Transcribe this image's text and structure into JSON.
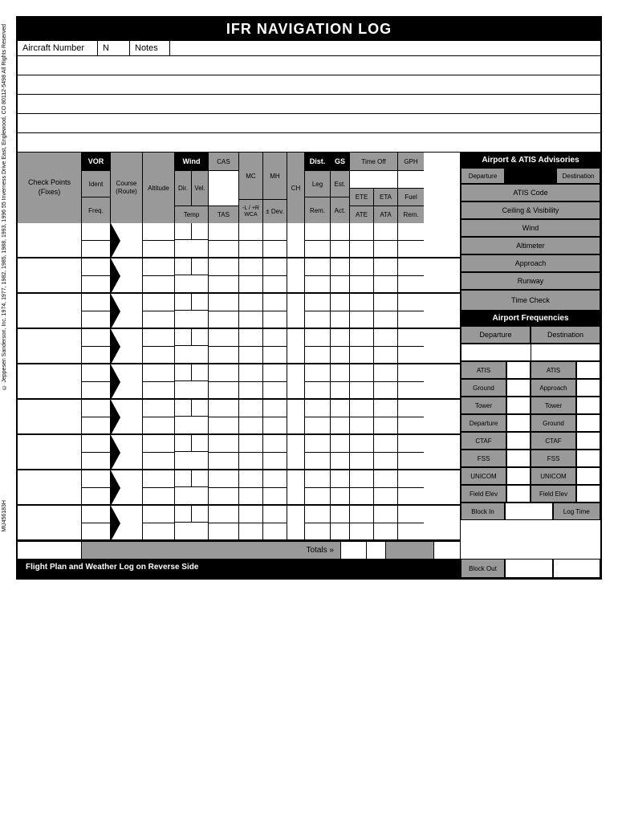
{
  "title": "IFR NAVIGATION LOG",
  "copyright": "© Jeppesen Sanderson, Inc. 1974, 1977, 1982, 1985, 1988, 1993, 1996\n55 Inverness Drive East, Englewood, CO 80112-5498\nAll Rights Reserved",
  "doc_id": "MU456183H",
  "top_row": {
    "aircraft_label": "Aircraft Number",
    "n": "N",
    "notes_label": "Notes"
  },
  "headers": {
    "checkpoints": "Check Points\n(Fixes)",
    "vor": "VOR",
    "ident": "Ident",
    "freq": "Freq.",
    "course": "Course\n(Route)",
    "altitude": "Altitude",
    "wind": "Wind",
    "dir": "Dir.",
    "vel": "Vel.",
    "temp": "Temp",
    "cas": "CAS",
    "tas": "TAS",
    "mc": "MC",
    "wca": "-L / +R\nWCA",
    "mh": "MH",
    "dev": "± Dev.",
    "ch": "CH",
    "dist": "Dist.",
    "leg": "Leg",
    "rem_dist": "Rem.",
    "gs": "GS",
    "est": "Est.",
    "act": "Act.",
    "timeoff": "Time Off",
    "ete": "ETE",
    "eta": "ETA",
    "ate": "ATE",
    "ata": "ATA",
    "gph": "GPH",
    "fuel": "Fuel",
    "rem_fuel": "Rem."
  },
  "right": {
    "advisories_header": "Airport & ATIS Advisories",
    "departure": "Departure",
    "destination": "Destination",
    "atis_code": "ATIS Code",
    "ceiling": "Ceiling & Visibility",
    "wind": "Wind",
    "altimeter": "Altimeter",
    "approach": "Approach",
    "runway": "Runway",
    "time_check": "Time Check",
    "freq_header": "Airport Frequencies",
    "atis": "ATIS",
    "ground": "Ground",
    "tower": "Tower",
    "ctaf": "CTAF",
    "fss": "FSS",
    "unicom": "UNICOM",
    "field_elev": "Field Elev",
    "block_in": "Block In",
    "block_out": "Block Out",
    "log_time": "Log Time"
  },
  "totals": "Totals »",
  "footer": "Flight Plan and Weather Log on Reverse Side",
  "num_data_rows": 9,
  "colors": {
    "black": "#000000",
    "gray": "#999999",
    "white": "#ffffff"
  }
}
